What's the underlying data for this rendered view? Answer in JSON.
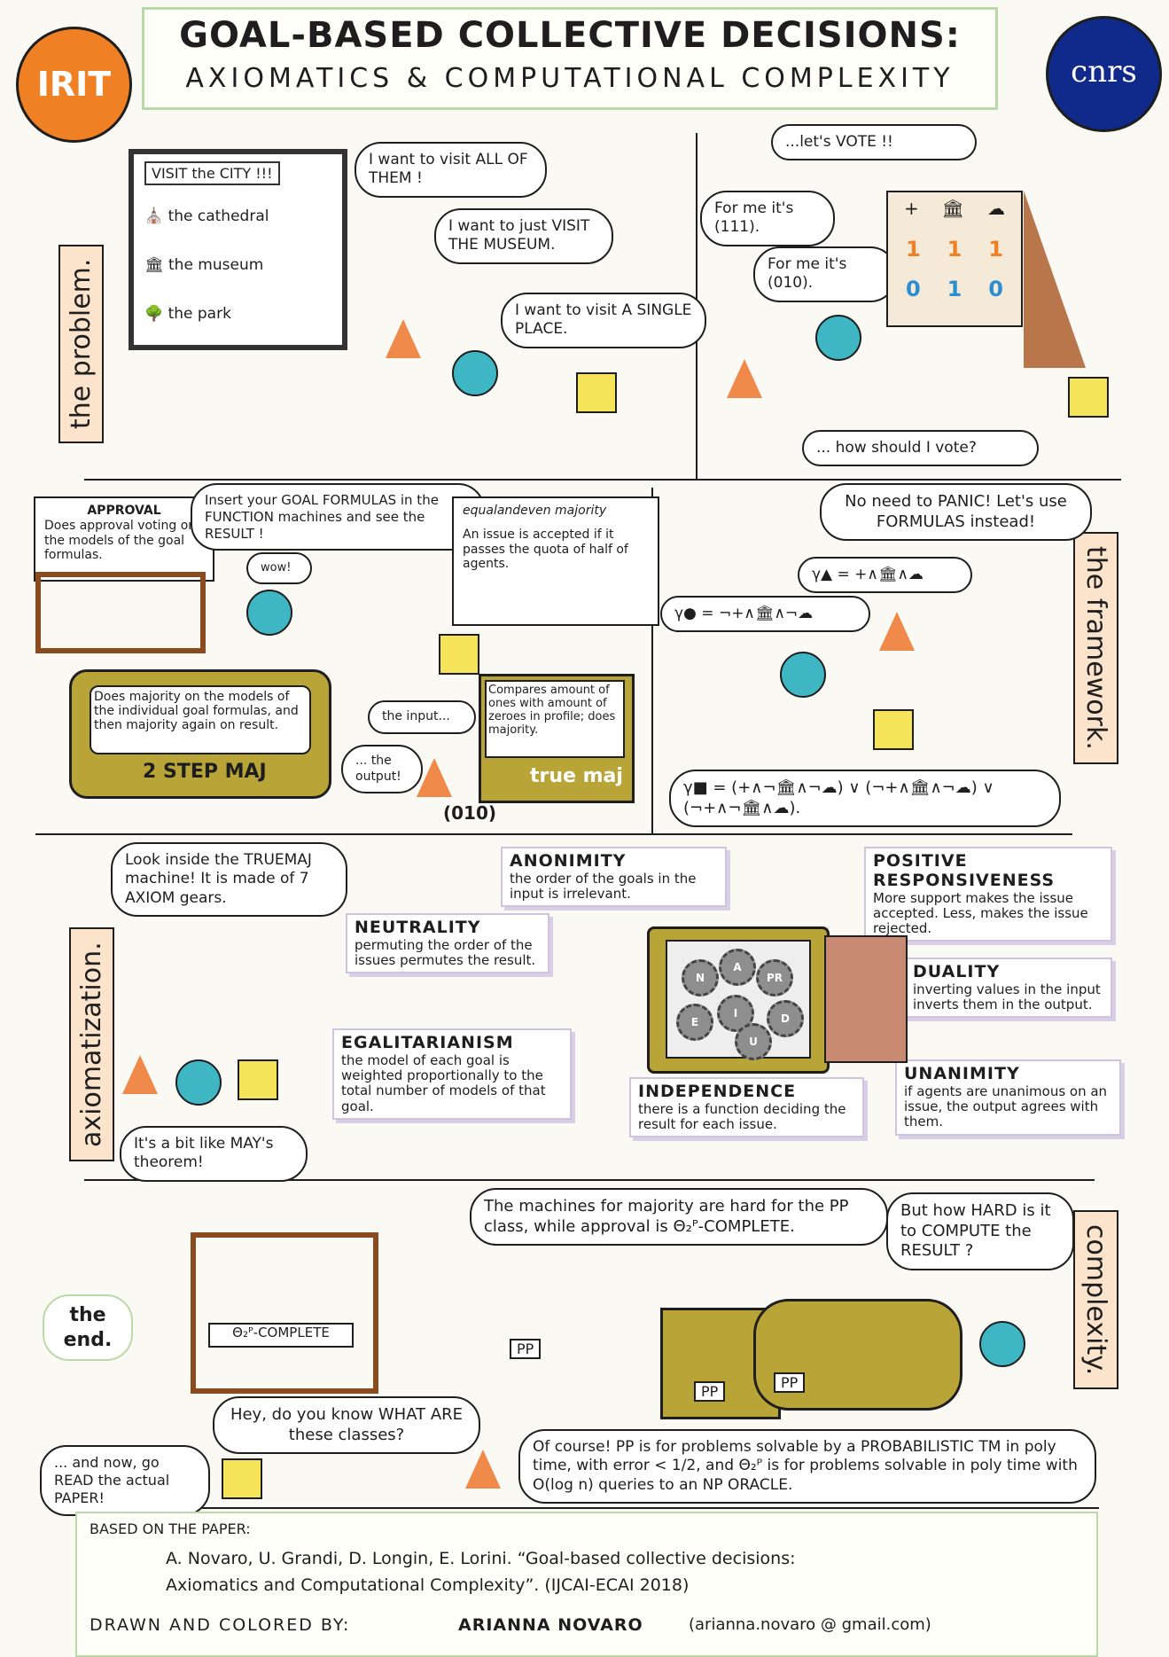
{
  "header": {
    "title": "GOAL-BASED COLLECTIVE DECISIONS:",
    "subtitle": "AXIOMATICS & COMPUTATIONAL COMPLEXITY",
    "logo_left": "IRIT",
    "logo_right": "cnrs"
  },
  "sections": {
    "problem": "the problem.",
    "framework": "the framework.",
    "axiomatization": "axiomatization.",
    "complexity": "complexity.",
    "the_end": "the end."
  },
  "problem": {
    "board_title": "VISIT the CITY !!!",
    "board_items": [
      "the cathedral",
      "the museum",
      "the park"
    ],
    "bubble_triangle": "I want to visit ALL OF THEM !",
    "bubble_circle": "I want to just VISIT THE MUSEUM.",
    "bubble_square": "I want to visit A SINGLE PLACE.",
    "vote_bubble": "...let's VOTE !!",
    "bubble_for_me_1": "For me it's (111).",
    "bubble_for_me_2": "For me it's (010).",
    "vote_header": [
      "+",
      "🏛",
      "☁"
    ],
    "vote_row_1": [
      "1",
      "1",
      "1"
    ],
    "vote_row_2": [
      "0",
      "1",
      "0"
    ],
    "how_vote": "... how should I vote?"
  },
  "framework": {
    "approval_label": "APPROVAL",
    "approval_text": "Does approval voting on the models of the goal formulas.",
    "insert_bubble": "Insert your GOAL FORMULAS in the FUNCTION machines and see the RESULT !",
    "eq_label": "equalandeven majority",
    "eq_text": "An issue is accepted if it passes the quota of half of agents.",
    "wow": "wow!",
    "twostep_text": "Does majority on the models of the individual goal formulas, and then majority again on result.",
    "twostep_label": "2 STEP MAJ",
    "truemaj_text": "Compares amount of ones with amount of zeroes in profile; does majority.",
    "input_bubble": "the input...",
    "output_bubble": "... the output!",
    "output_value": "(010)",
    "truemaj_label": "true maj",
    "panic_bubble": "No need to PANIC! Let's use FORMULAS instead!",
    "gamma_triangle": "γ▲ = +∧🏛∧☁",
    "gamma_circle": "γ● = ¬+∧🏛∧¬☁",
    "gamma_square": "γ■ = (+∧¬🏛∧¬☁) ∨ (¬+∧🏛∧¬☁) ∨ (¬+∧¬🏛∧☁)."
  },
  "axioms": {
    "intro_bubble": "Look inside the TRUEMAJ machine! It is made of 7 AXIOM gears.",
    "may_bubble": "It's a bit like MAY's theorem!",
    "gears": [
      "N",
      "A",
      "PR",
      "D",
      "E",
      "I",
      "U"
    ],
    "items": [
      {
        "name": "ANONIMITY",
        "text": "the order of the goals in the input is irrelevant."
      },
      {
        "name": "POSITIVE RESPONSIVENESS",
        "text": "More support makes the issue accepted. Less, makes the issue rejected."
      },
      {
        "name": "NEUTRALITY",
        "text": "permuting the order of the issues permutes the result."
      },
      {
        "name": "DUALITY",
        "text": "inverting values in the input inverts them in the output."
      },
      {
        "name": "EGALITARIANISM",
        "text": "the model of each goal is weighted proportionally to the total number of models of that goal."
      },
      {
        "name": "UNANIMITY",
        "text": "if agents are unanimous on an issue, the output agrees with them."
      },
      {
        "name": "INDEPENDENCE",
        "text": "there is a function deciding the result for each issue."
      }
    ]
  },
  "complexity": {
    "machines_bubble": "The machines for majority are hard for the PP class, while approval is Θ₂ᴾ-COMPLETE.",
    "hard_bubble": "But how HARD is it to COMPUTE the RESULT ?",
    "abacus_label": "Θ₂ᴾ-COMPLETE",
    "pp_label": "PP",
    "know_bubble": "Hey, do you know WHAT ARE these classes?",
    "read_bubble": "... and now, go READ the actual PAPER!",
    "ofcourse_bubble": "Of course! PP is for problems solvable by a PROBABILISTIC TM in poly time, with error < 1/2, and Θ₂ᴾ is for problems solvable in poly time with O(log n) queries to an NP ORACLE."
  },
  "credits": {
    "based_on": "BASED ON THE PAPER:",
    "citation_1": "A. Novaro, U. Grandi, D. Longin, E. Lorini. “Goal-based collective decisions:",
    "citation_2": "Axiomatics and Computational Complexity”. (IJCAI-ECAI 2018)",
    "drawn_by_label": "DRAWN AND COLORED BY:",
    "author": "ARIANNA NOVARO",
    "email": "(arianna.novaro @ gmail.com)"
  }
}
